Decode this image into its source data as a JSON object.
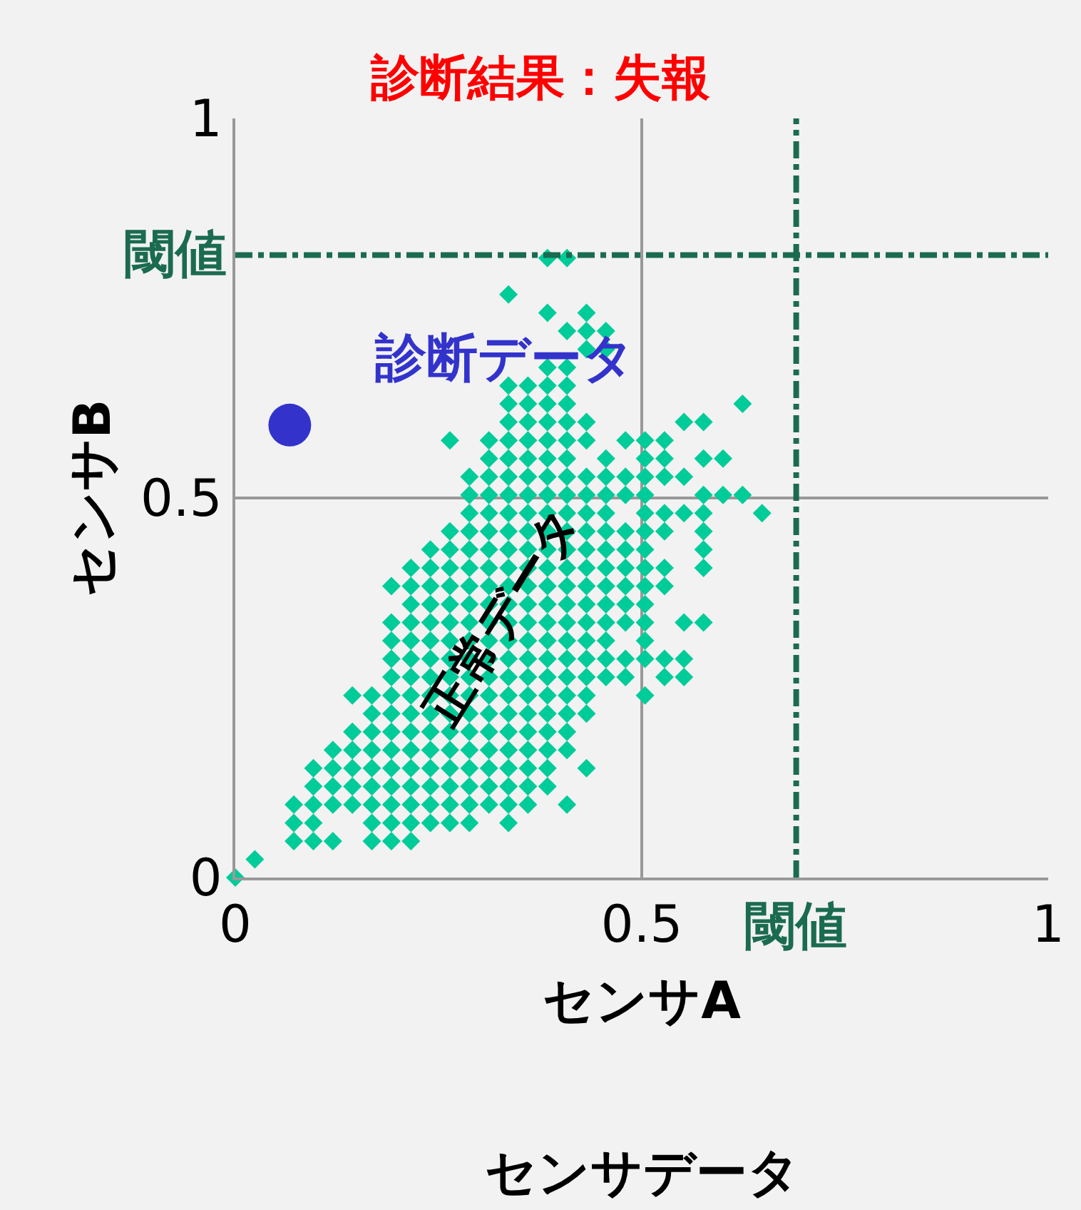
{
  "chart_data": {
    "type": "scatter",
    "title": "診断結果：失報",
    "xlabel": "センサA",
    "ylabel": "センサB",
    "annotations": [
      "センサデータ"
    ],
    "xlim": [
      0,
      1
    ],
    "ylim": [
      0,
      1
    ],
    "xticks": [
      0,
      0.5,
      1
    ],
    "yticks": [
      0,
      0.5,
      1
    ],
    "grid": true,
    "legend": false,
    "ref_lines": [
      {
        "axis": "x",
        "value": 0.69,
        "label": "閾値",
        "color": "#1b6b50",
        "line_style": "dashdot"
      },
      {
        "axis": "y",
        "value": 0.82,
        "label": "閾値",
        "color": "#1b6b50",
        "line_style": "dashdot"
      }
    ],
    "series": [
      {
        "name": "正常データ",
        "color": "#00cc99",
        "marker": "diamond",
        "x": [
          0,
          0.024,
          0.072,
          0.096,
          0.12,
          0.168,
          0.192,
          0.216,
          0.072,
          0.096,
          0.168,
          0.192,
          0.216,
          0.24,
          0.264,
          0.288,
          0.336,
          0.072,
          0.096,
          0.12,
          0.144,
          0.168,
          0.192,
          0.216,
          0.24,
          0.264,
          0.288,
          0.312,
          0.336,
          0.36,
          0.408,
          0.096,
          0.12,
          0.144,
          0.168,
          0.192,
          0.216,
          0.24,
          0.264,
          0.288,
          0.312,
          0.336,
          0.36,
          0.384,
          0.096,
          0.12,
          0.144,
          0.168,
          0.192,
          0.216,
          0.24,
          0.264,
          0.288,
          0.312,
          0.336,
          0.36,
          0.384,
          0.432,
          0.12,
          0.144,
          0.168,
          0.192,
          0.216,
          0.24,
          0.264,
          0.288,
          0.312,
          0.336,
          0.36,
          0.384,
          0.408,
          0.144,
          0.168,
          0.192,
          0.216,
          0.24,
          0.264,
          0.288,
          0.312,
          0.336,
          0.36,
          0.384,
          0.408,
          0.168,
          0.192,
          0.216,
          0.24,
          0.264,
          0.288,
          0.312,
          0.336,
          0.36,
          0.384,
          0.408,
          0.432,
          0.144,
          0.168,
          0.192,
          0.216,
          0.24,
          0.264,
          0.288,
          0.312,
          0.336,
          0.36,
          0.384,
          0.408,
          0.432,
          0.504,
          0.192,
          0.216,
          0.24,
          0.264,
          0.288,
          0.312,
          0.336,
          0.36,
          0.384,
          0.408,
          0.432,
          0.456,
          0.48,
          0.528,
          0.552,
          0.192,
          0.216,
          0.24,
          0.264,
          0.288,
          0.312,
          0.336,
          0.36,
          0.384,
          0.408,
          0.432,
          0.456,
          0.48,
          0.504,
          0.528,
          0.552,
          0.192,
          0.216,
          0.24,
          0.264,
          0.288,
          0.312,
          0.336,
          0.36,
          0.384,
          0.408,
          0.432,
          0.456,
          0.504,
          0.192,
          0.216,
          0.24,
          0.264,
          0.288,
          0.312,
          0.336,
          0.36,
          0.384,
          0.408,
          0.432,
          0.456,
          0.48,
          0.504,
          0.552,
          0.576,
          0.216,
          0.24,
          0.264,
          0.288,
          0.312,
          0.336,
          0.36,
          0.384,
          0.408,
          0.432,
          0.456,
          0.48,
          0.504,
          0.192,
          0.216,
          0.24,
          0.264,
          0.288,
          0.312,
          0.336,
          0.36,
          0.384,
          0.408,
          0.432,
          0.456,
          0.48,
          0.504,
          0.528,
          0.216,
          0.24,
          0.264,
          0.288,
          0.312,
          0.336,
          0.36,
          0.384,
          0.408,
          0.432,
          0.456,
          0.48,
          0.504,
          0.528,
          0.576,
          0.24,
          0.264,
          0.288,
          0.312,
          0.336,
          0.36,
          0.384,
          0.408,
          0.432,
          0.456,
          0.48,
          0.504,
          0.576,
          0.264,
          0.288,
          0.312,
          0.336,
          0.36,
          0.384,
          0.408,
          0.432,
          0.456,
          0.48,
          0.504,
          0.528,
          0.576,
          0.288,
          0.312,
          0.336,
          0.36,
          0.384,
          0.408,
          0.432,
          0.456,
          0.504,
          0.528,
          0.552,
          0.576,
          0.648,
          0.288,
          0.312,
          0.336,
          0.36,
          0.384,
          0.408,
          0.432,
          0.456,
          0.48,
          0.504,
          0.576,
          0.6,
          0.624,
          0.288,
          0.312,
          0.336,
          0.36,
          0.384,
          0.408,
          0.432,
          0.456,
          0.48,
          0.504,
          0.528,
          0.552,
          0.312,
          0.336,
          0.36,
          0.384,
          0.408,
          0.456,
          0.504,
          0.528,
          0.576,
          0.6,
          0.264,
          0.312,
          0.336,
          0.36,
          0.384,
          0.408,
          0.432,
          0.48,
          0.504,
          0.528,
          0.336,
          0.36,
          0.384,
          0.408,
          0.432,
          0.552,
          0.576,
          0.336,
          0.36,
          0.384,
          0.408,
          0.624,
          0.336,
          0.36,
          0.384,
          0.408,
          0.384,
          0.408,
          0.432,
          0.456,
          0.408,
          0.432,
          0.456,
          0.384,
          0.432,
          0.336,
          0.384,
          0.408
        ],
        "values": [
          0,
          0.024,
          0.048,
          0.048,
          0.048,
          0.048,
          0.048,
          0.048,
          0.072,
          0.072,
          0.072,
          0.072,
          0.072,
          0.072,
          0.072,
          0.072,
          0.072,
          0.096,
          0.096,
          0.096,
          0.096,
          0.096,
          0.096,
          0.096,
          0.096,
          0.096,
          0.096,
          0.096,
          0.096,
          0.096,
          0.096,
          0.12,
          0.12,
          0.12,
          0.12,
          0.12,
          0.12,
          0.12,
          0.12,
          0.12,
          0.12,
          0.12,
          0.12,
          0.12,
          0.144,
          0.144,
          0.144,
          0.144,
          0.144,
          0.144,
          0.144,
          0.144,
          0.144,
          0.144,
          0.144,
          0.144,
          0.144,
          0.144,
          0.168,
          0.168,
          0.168,
          0.168,
          0.168,
          0.168,
          0.168,
          0.168,
          0.168,
          0.168,
          0.168,
          0.168,
          0.168,
          0.192,
          0.192,
          0.192,
          0.192,
          0.192,
          0.192,
          0.192,
          0.192,
          0.192,
          0.192,
          0.192,
          0.192,
          0.216,
          0.216,
          0.216,
          0.216,
          0.216,
          0.216,
          0.216,
          0.216,
          0.216,
          0.216,
          0.216,
          0.216,
          0.24,
          0.24,
          0.24,
          0.24,
          0.24,
          0.24,
          0.24,
          0.24,
          0.24,
          0.24,
          0.24,
          0.24,
          0.24,
          0.24,
          0.264,
          0.264,
          0.264,
          0.264,
          0.264,
          0.264,
          0.264,
          0.264,
          0.264,
          0.264,
          0.264,
          0.264,
          0.264,
          0.264,
          0.264,
          0.288,
          0.288,
          0.288,
          0.288,
          0.288,
          0.288,
          0.288,
          0.288,
          0.288,
          0.288,
          0.288,
          0.288,
          0.288,
          0.288,
          0.288,
          0.288,
          0.312,
          0.312,
          0.312,
          0.312,
          0.312,
          0.312,
          0.312,
          0.312,
          0.312,
          0.312,
          0.312,
          0.312,
          0.312,
          0.336,
          0.336,
          0.336,
          0.336,
          0.336,
          0.336,
          0.336,
          0.336,
          0.336,
          0.336,
          0.336,
          0.336,
          0.336,
          0.336,
          0.336,
          0.336,
          0.36,
          0.36,
          0.36,
          0.36,
          0.36,
          0.36,
          0.36,
          0.36,
          0.36,
          0.36,
          0.36,
          0.36,
          0.36,
          0.384,
          0.384,
          0.384,
          0.384,
          0.384,
          0.384,
          0.384,
          0.384,
          0.384,
          0.384,
          0.384,
          0.384,
          0.384,
          0.384,
          0.384,
          0.408,
          0.408,
          0.408,
          0.408,
          0.408,
          0.408,
          0.408,
          0.408,
          0.408,
          0.408,
          0.408,
          0.408,
          0.408,
          0.408,
          0.408,
          0.432,
          0.432,
          0.432,
          0.432,
          0.432,
          0.432,
          0.432,
          0.432,
          0.432,
          0.432,
          0.432,
          0.432,
          0.432,
          0.456,
          0.456,
          0.456,
          0.456,
          0.456,
          0.456,
          0.456,
          0.456,
          0.456,
          0.456,
          0.456,
          0.456,
          0.456,
          0.48,
          0.48,
          0.48,
          0.48,
          0.48,
          0.48,
          0.48,
          0.48,
          0.48,
          0.48,
          0.48,
          0.48,
          0.48,
          0.504,
          0.504,
          0.504,
          0.504,
          0.504,
          0.504,
          0.504,
          0.504,
          0.504,
          0.504,
          0.504,
          0.504,
          0.504,
          0.528,
          0.528,
          0.528,
          0.528,
          0.528,
          0.528,
          0.528,
          0.528,
          0.528,
          0.528,
          0.528,
          0.528,
          0.552,
          0.552,
          0.552,
          0.552,
          0.552,
          0.552,
          0.552,
          0.552,
          0.552,
          0.552,
          0.576,
          0.576,
          0.576,
          0.576,
          0.576,
          0.576,
          0.576,
          0.576,
          0.576,
          0.576,
          0.6,
          0.6,
          0.6,
          0.6,
          0.6,
          0.6,
          0.6,
          0.624,
          0.624,
          0.624,
          0.624,
          0.624,
          0.648,
          0.648,
          0.648,
          0.648,
          0.672,
          0.672,
          0.696,
          0.696,
          0.72,
          0.72,
          0.72,
          0.744,
          0.744,
          0.768,
          0.816,
          0.816
        ]
      },
      {
        "name": "診断データ",
        "color": "#3333cc",
        "marker": "circle",
        "x": [
          0.067
        ],
        "values": [
          0.596
        ]
      }
    ]
  }
}
